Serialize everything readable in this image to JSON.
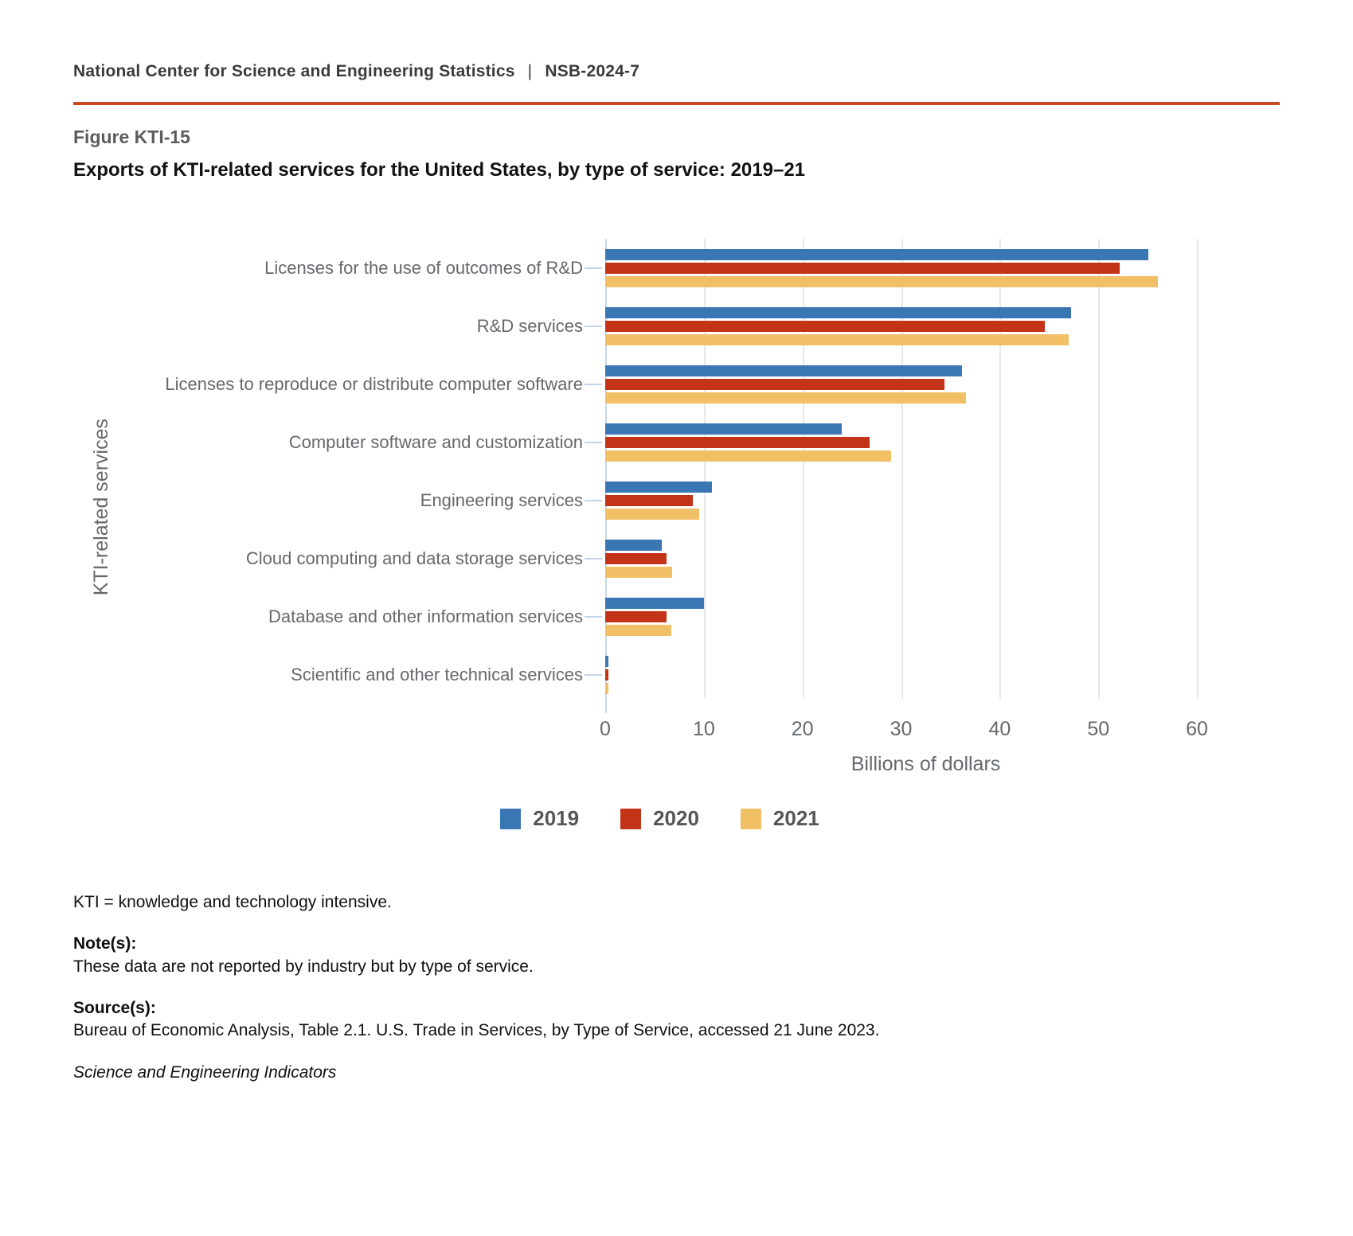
{
  "header": {
    "text": "National Center for Science and Engineering Statistics",
    "separator": "|",
    "doc_id": "NSB-2024-7"
  },
  "figure": {
    "label": "Figure KTI-15",
    "title": "Exports of KTI-related services for the United States, by type of service: 2019–21"
  },
  "chart_data": {
    "type": "bar",
    "orientation": "horizontal",
    "title": "Exports of KTI-related services for the United States, by type of service: 2019–21",
    "categories": [
      "Licenses for the use of outcomes of R&D",
      "R&D services",
      "Licenses to reproduce or distribute computer software",
      "Computer software and customization",
      "Engineering services",
      "Cloud computing and data storage services",
      "Database and other information services",
      "Scientific and other technical services"
    ],
    "series": [
      {
        "name": "2019",
        "color": "#3b76b4",
        "values": [
          55.1,
          47.2,
          36.2,
          24.0,
          10.8,
          5.7,
          10.0,
          0.3
        ]
      },
      {
        "name": "2020",
        "color": "#c23318",
        "values": [
          52.2,
          44.6,
          34.4,
          26.8,
          8.9,
          6.2,
          6.2,
          0.3
        ]
      },
      {
        "name": "2021",
        "color": "#f1bf66",
        "values": [
          56.0,
          47.0,
          36.6,
          29.0,
          9.5,
          6.8,
          6.7,
          0.3
        ]
      }
    ],
    "xlabel": "Billions of dollars",
    "ylabel": "KTI-related services",
    "xlim": [
      0,
      65
    ],
    "x_ticks": [
      0,
      10,
      20,
      30,
      40,
      50,
      60
    ],
    "grid": "vertical",
    "legend_position": "bottom"
  },
  "footnotes": {
    "abbreviation": "KTI = knowledge and technology intensive.",
    "notes_heading": "Note(s):",
    "notes_text": "These data are not reported by industry but by type of service.",
    "sources_heading": "Source(s):",
    "sources_text": "Bureau of Economic Analysis, Table 2.1. U.S. Trade in Services, by Type of Service, accessed 21 June 2023.",
    "attribution": "Science and Engineering Indicators"
  }
}
